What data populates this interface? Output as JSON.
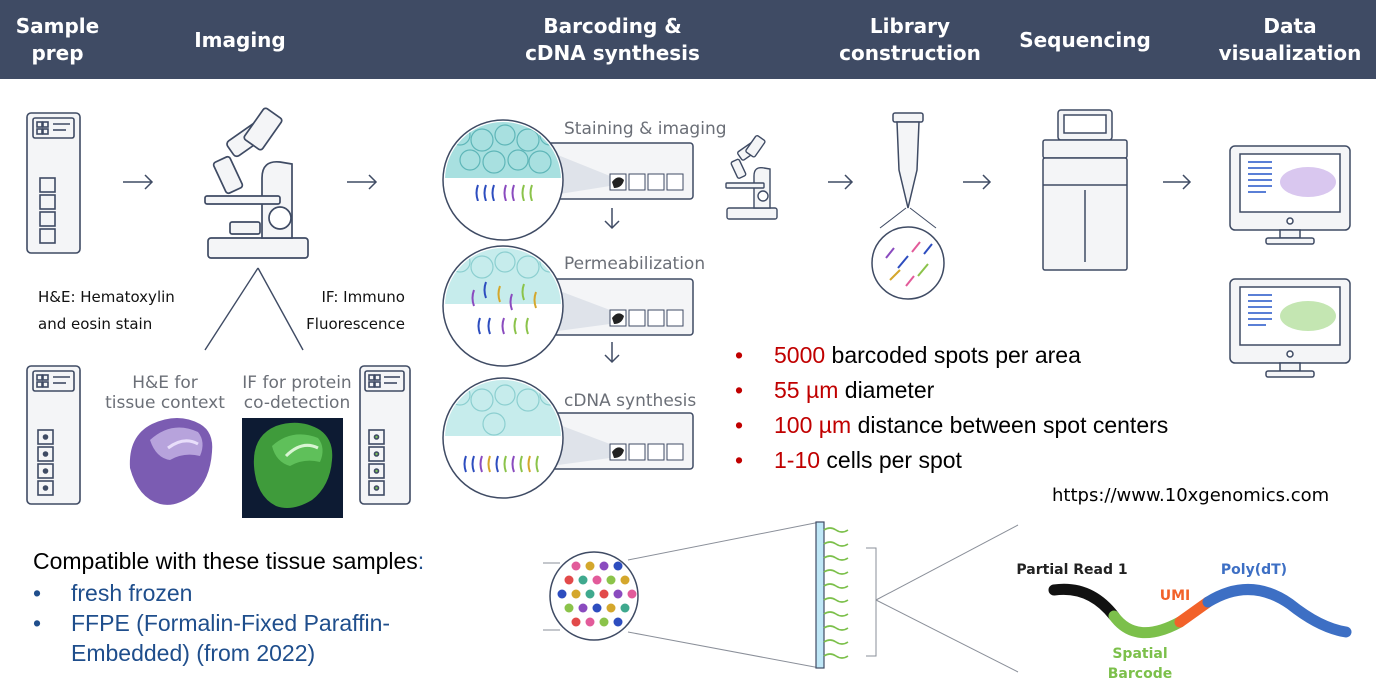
{
  "header": {
    "steps": [
      "Sample\nprep",
      "Imaging",
      "Barcoding &\ncDNA synthesis",
      "Library\nconstruction",
      "Sequencing",
      "Data\nvisualization"
    ]
  },
  "imaging": {
    "he_label": "H&E: Hematoxylin\nand eosin stain",
    "if_label": "IF: Immuno\nFluorescence",
    "he_caption": "H&E for\ntissue context",
    "if_caption": "IF for protein\nco-detection"
  },
  "barcoding": {
    "stage1": "Staining & imaging",
    "stage2": "Permeabilization",
    "stage3": "cDNA synthesis"
  },
  "facts": [
    {
      "value": "5000",
      "text": " barcoded spots per area"
    },
    {
      "value": "55 µm",
      "text": " diameter"
    },
    {
      "value": "100 µm",
      "text": " distance between spot centers"
    },
    {
      "value": "1-10",
      "text": " cells per spot"
    }
  ],
  "source_url": "https://www.10xgenomics.com",
  "compatibility": {
    "title": "Compatible with these tissue samples",
    "title_suffix": ":",
    "items": [
      "fresh frozen",
      "FFPE (Formalin-Fixed Paraffin-\nEmbedded) (from 2022)"
    ]
  },
  "read_structure": {
    "partial_read": "Partial Read 1",
    "umi": "UMI",
    "polydt": "Poly(dT)",
    "spatial_barcode": "Spatial\nBarcode"
  },
  "colors": {
    "header_bg": "#3f4b64",
    "highlight_red": "#c00000",
    "compat_blue": "#1f4e8c",
    "read_black": "#111111",
    "barcode_green": "#7cc04b",
    "umi_orange": "#f2622a",
    "polydt_blue": "#3d6fc4"
  }
}
